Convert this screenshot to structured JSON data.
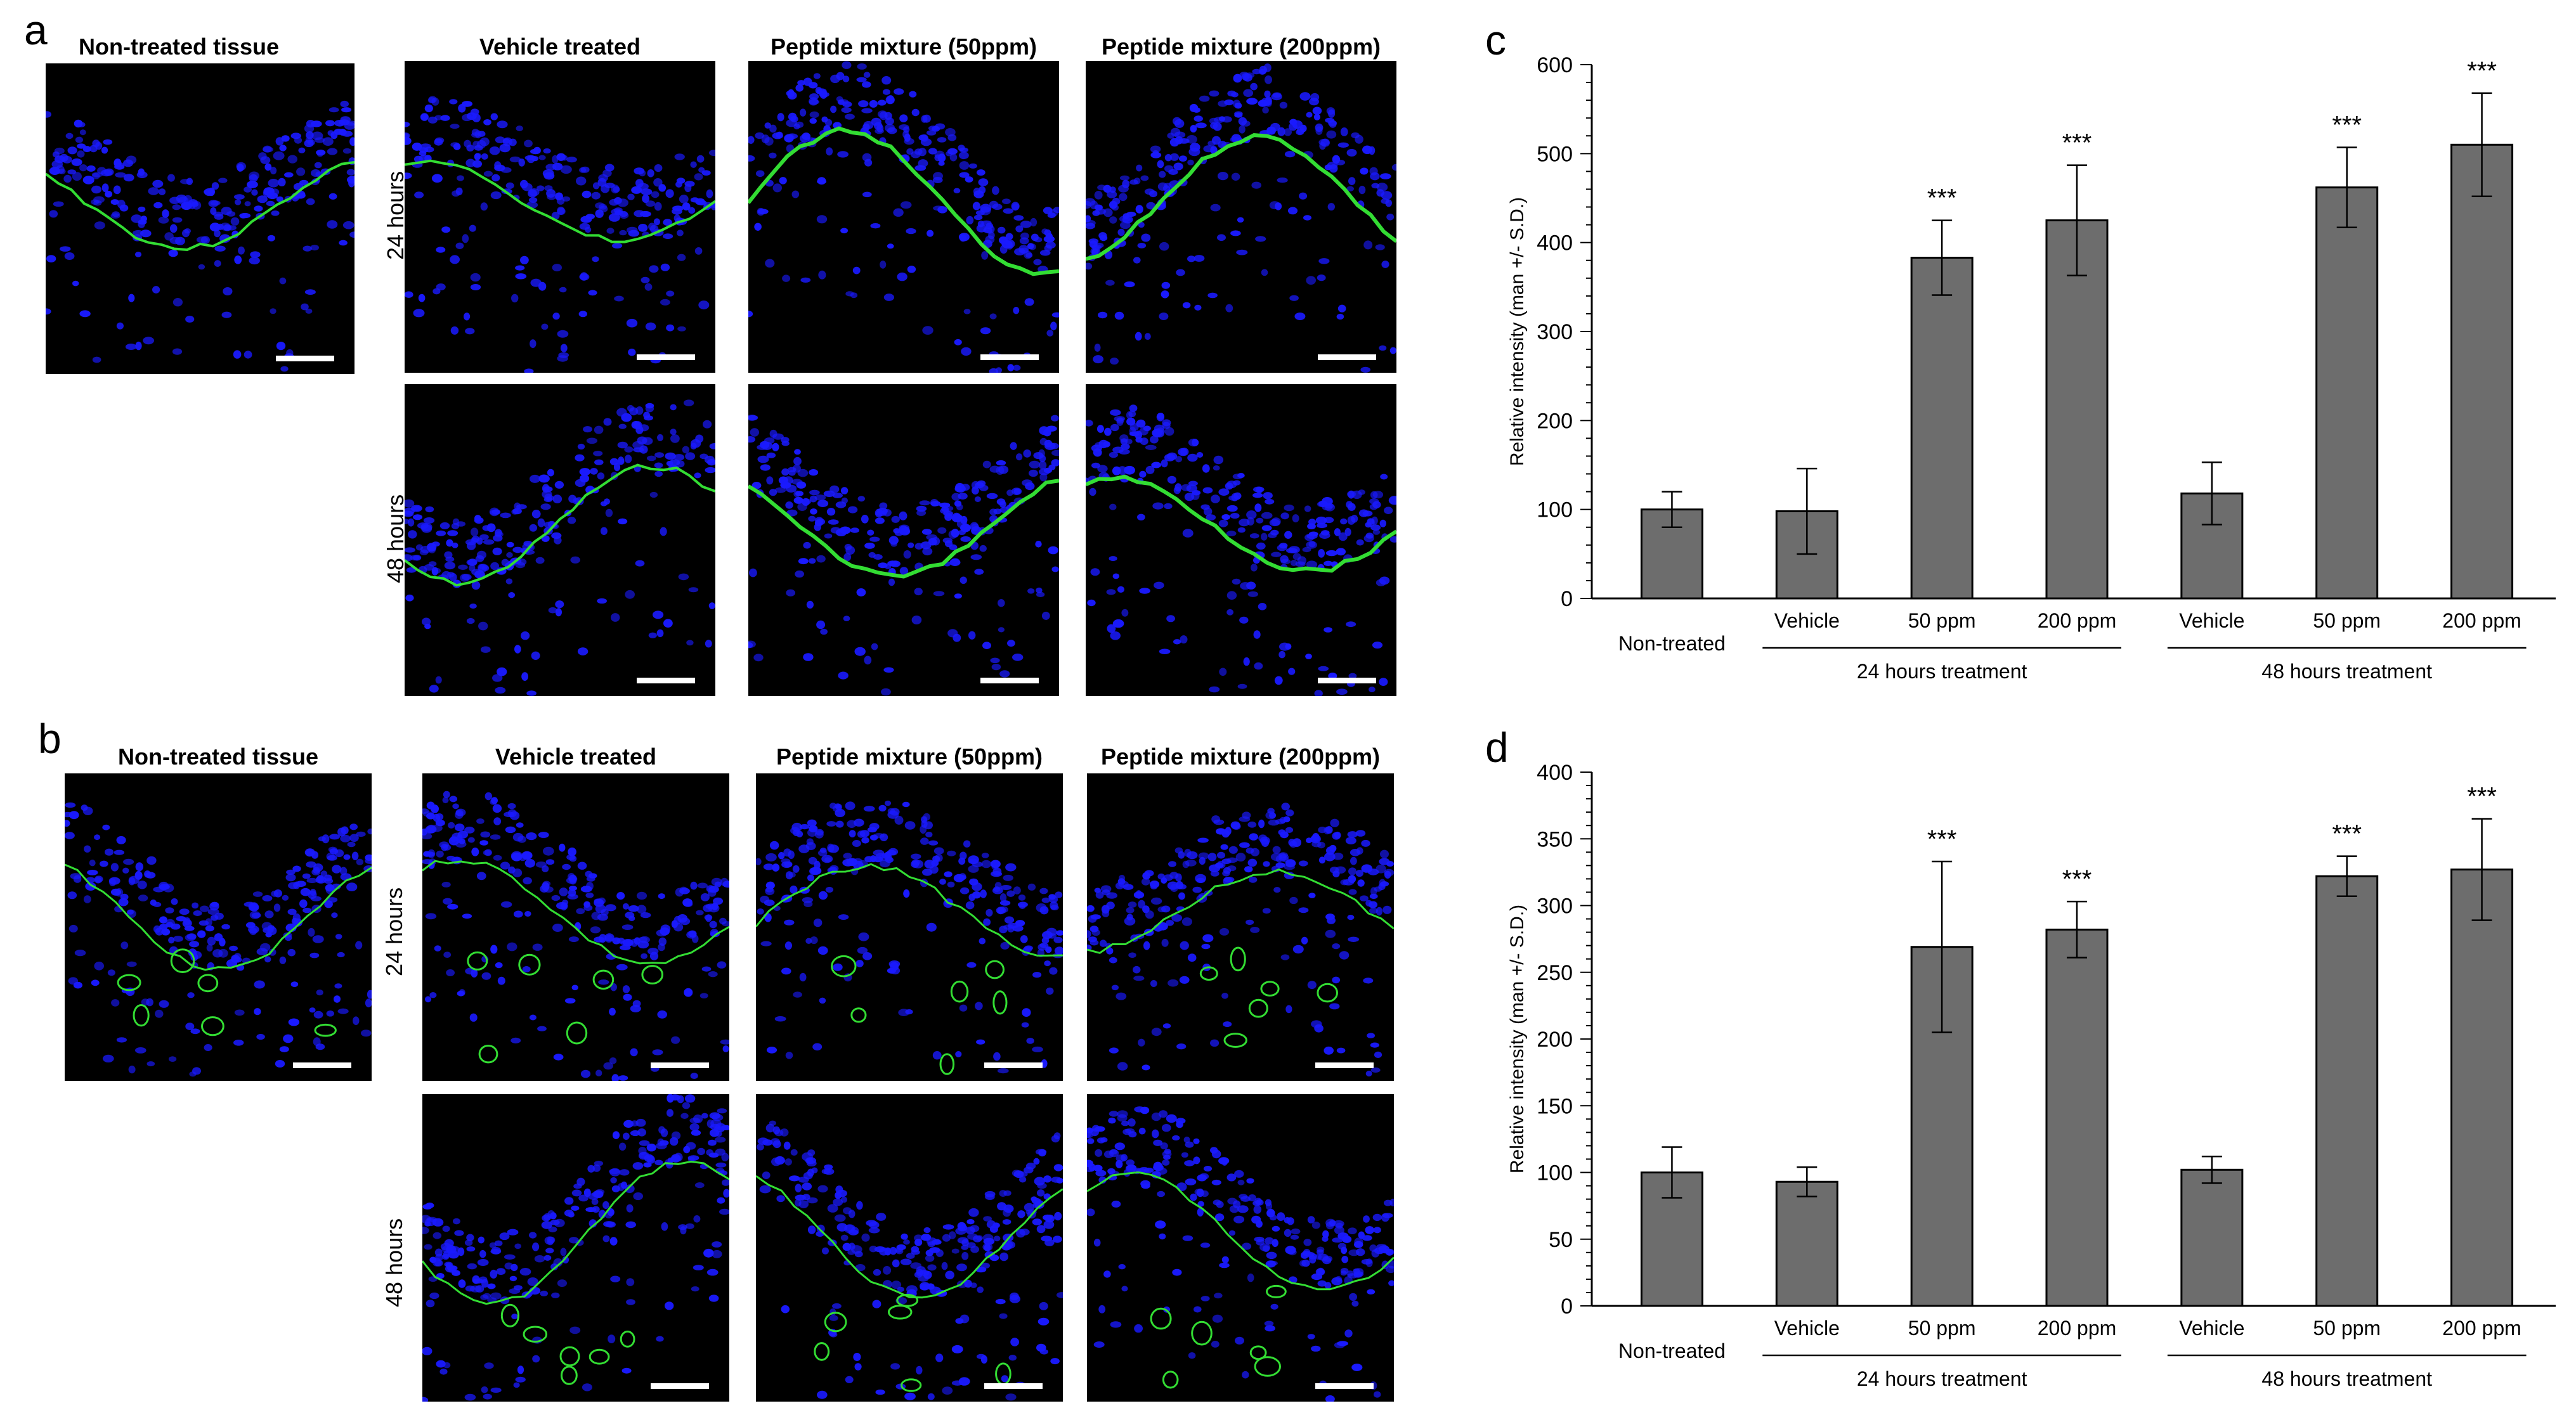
{
  "panel_a": {
    "letter": "a",
    "titles": {
      "non_treated": "Non-treated tissue",
      "vehicle": "Vehicle treated",
      "p50": "Peptide mixture (50ppm)",
      "p200": "Peptide mixture (200ppm)"
    },
    "rows": {
      "h24": "24 hours",
      "h48": "48 hours"
    },
    "colors": {
      "background": "#000000",
      "nuclei": "#1a1aff",
      "stain": "#33dd33"
    }
  },
  "panel_b": {
    "letter": "b",
    "titles": {
      "non_treated": "Non-treated tissue",
      "vehicle": "Vehicle treated",
      "p50": "Peptide mixture (50ppm)",
      "p200": "Peptide mixture (200ppm)"
    },
    "rows": {
      "h24": "24 hours",
      "h48": "48 hours"
    },
    "colors": {
      "background": "#000000",
      "nuclei": "#1a1aff",
      "stain": "#33dd33"
    }
  },
  "chart_data": [
    {
      "panel": "c",
      "type": "bar",
      "ylabel": "Relative intensity (man +/- S.D.)",
      "ylim": [
        0,
        600
      ],
      "yticks": [
        0,
        100,
        200,
        300,
        400,
        500,
        600
      ],
      "categories": [
        "Non-treated",
        "Vehicle",
        "50 ppm",
        "200 ppm",
        "Vehicle",
        "50 ppm",
        "200 ppm"
      ],
      "values": [
        100,
        98,
        383,
        425,
        118,
        462,
        510
      ],
      "errors": [
        20,
        48,
        42,
        62,
        35,
        45,
        58
      ],
      "significance": [
        "",
        "",
        "***",
        "***",
        "",
        "***",
        "***"
      ],
      "groups": [
        {
          "label": "24 hours treatment",
          "start": 1,
          "end": 3
        },
        {
          "label": "48 hours treatment",
          "start": 4,
          "end": 6
        }
      ],
      "bar_color": "#6d6d6d"
    },
    {
      "panel": "d",
      "type": "bar",
      "ylabel": "Relative intensity (man +/- S.D.)",
      "ylim": [
        0,
        400
      ],
      "yticks": [
        0,
        50,
        100,
        150,
        200,
        250,
        300,
        350,
        400
      ],
      "categories": [
        "Non-treated",
        "Vehicle",
        "50 ppm",
        "200 ppm",
        "Vehicle",
        "50 ppm",
        "200 ppm"
      ],
      "values": [
        100,
        93,
        269,
        282,
        102,
        322,
        327
      ],
      "errors": [
        19,
        11,
        64,
        21,
        10,
        15,
        38
      ],
      "significance": [
        "",
        "",
        "***",
        "***",
        "",
        "***",
        "***"
      ],
      "groups": [
        {
          "label": "24 hours treatment",
          "start": 1,
          "end": 3
        },
        {
          "label": "48 hours treatment",
          "start": 4,
          "end": 6
        }
      ],
      "bar_color": "#6d6d6d"
    }
  ]
}
